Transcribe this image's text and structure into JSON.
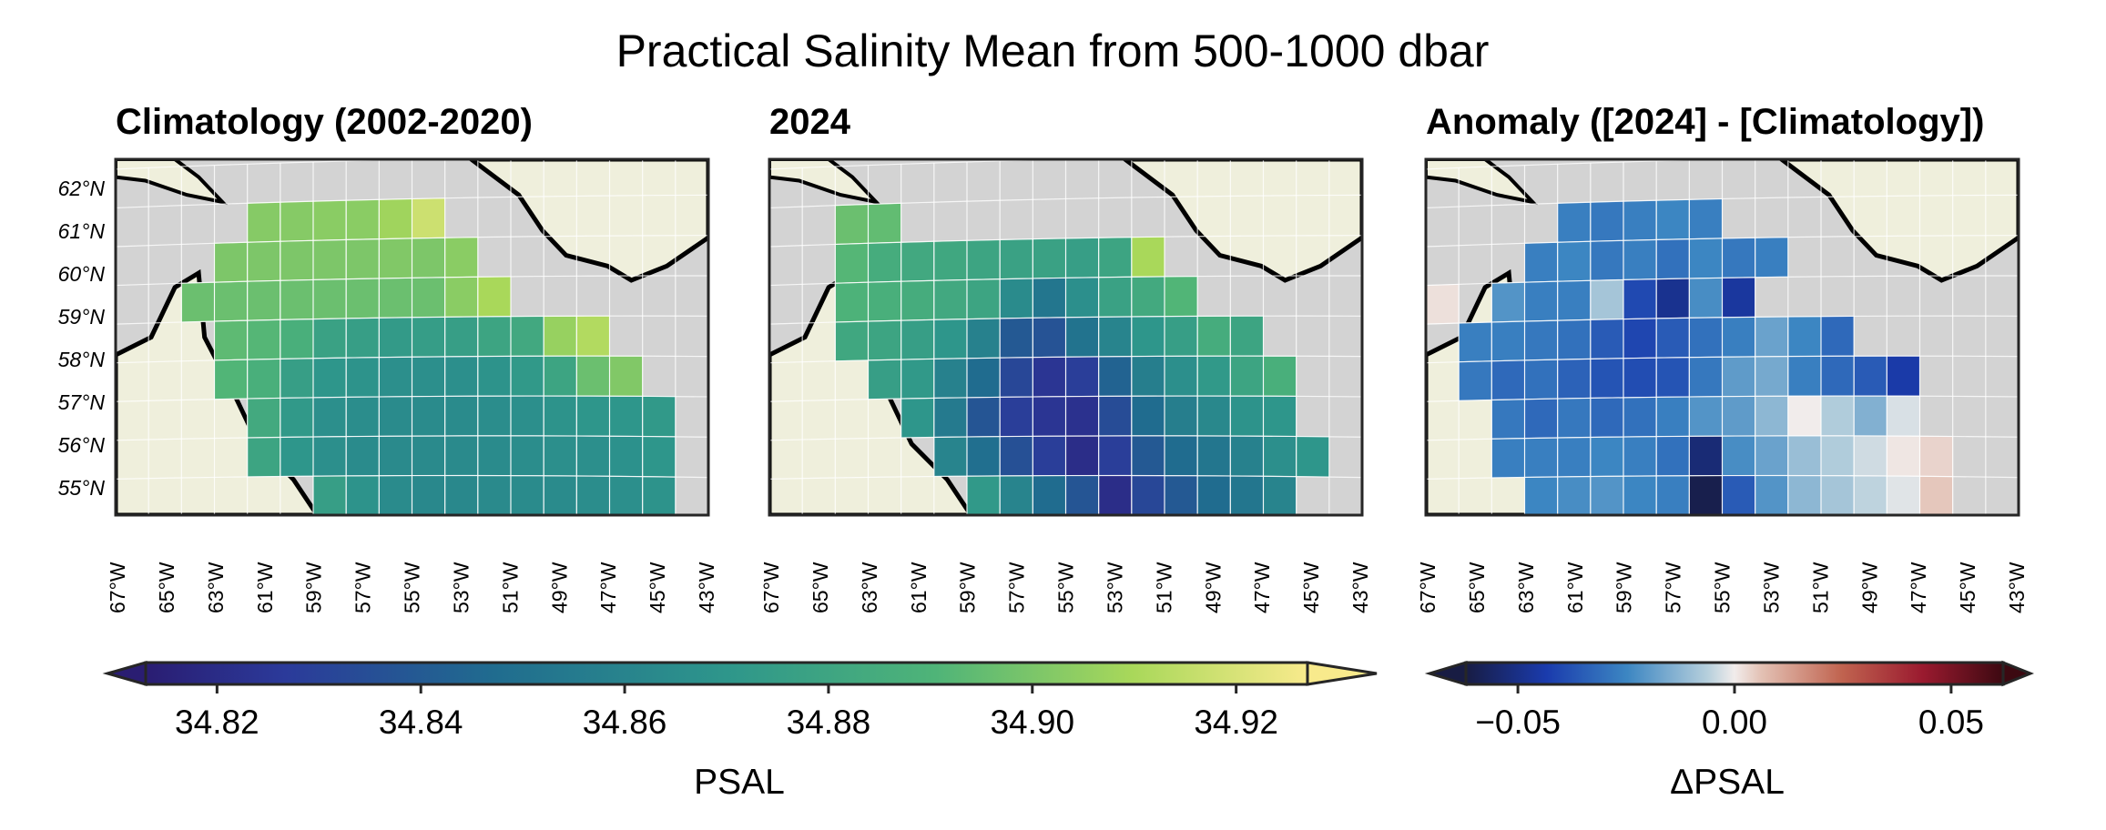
{
  "figure": {
    "title": "Practical Salinity Mean from 500-1000 dbar"
  },
  "panels": [
    {
      "id": "clim",
      "title": "Climatology (2002-2020)",
      "show_lat_labels": true
    },
    {
      "id": "y2024",
      "title": "2024",
      "show_lat_labels": false
    },
    {
      "id": "anom",
      "title": "Anomaly ([2024] - [Climatology])",
      "show_lat_labels": false
    }
  ],
  "lat_labels": [
    "55°N",
    "56°N",
    "57°N",
    "58°N",
    "59°N",
    "60°N",
    "61°N",
    "62°N"
  ],
  "lon_labels": [
    "67°W",
    "65°W",
    "63°W",
    "61°W",
    "59°W",
    "57°W",
    "55°W",
    "53°W",
    "51°W",
    "49°W",
    "47°W",
    "45°W",
    "43°W"
  ],
  "colorbars": [
    {
      "id": "psal",
      "label": "PSAL",
      "colormap": "summer-like viridis (dark blue → teal → green → yellow)",
      "ticks": [
        "34.82",
        "34.84",
        "34.86",
        "34.88",
        "34.90",
        "34.92"
      ],
      "extend": "both"
    },
    {
      "id": "dpsal",
      "label": "ΔPSAL",
      "colormap": "balance (navy → blue → white → red → dark red)",
      "ticks": [
        "−0.05",
        "0.00",
        "0.05"
      ],
      "extend": "both"
    }
  ],
  "colors": {
    "land": "#efefdc",
    "ocean": "#d3d3d3",
    "coast": "#000000",
    "gridline": "#ffffff",
    "frame": "#262626"
  },
  "map_data": {
    "grid_columns": 18,
    "grid_rows": 9,
    "note": "cell rows listed from north (row 0) to south (row 8); null = no data",
    "climatology_psal": [
      [
        null,
        null,
        null,
        null,
        null,
        null,
        null,
        null,
        null,
        null,
        null,
        null,
        null,
        null,
        null,
        null,
        null,
        null
      ],
      [
        null,
        null,
        null,
        null,
        34.904,
        34.904,
        34.905,
        34.905,
        34.91,
        34.92,
        null,
        null,
        null,
        null,
        null,
        null,
        null,
        null
      ],
      [
        null,
        null,
        null,
        34.902,
        34.902,
        34.902,
        34.902,
        34.902,
        34.903,
        34.902,
        34.905,
        null,
        null,
        null,
        null,
        null,
        null,
        null
      ],
      [
        null,
        null,
        34.898,
        34.898,
        34.898,
        34.898,
        34.898,
        34.898,
        34.898,
        34.898,
        34.905,
        34.912,
        null,
        null,
        null,
        null,
        null,
        null
      ],
      [
        null,
        null,
        null,
        34.895,
        34.893,
        34.888,
        34.878,
        34.876,
        34.873,
        34.875,
        34.876,
        34.88,
        34.883,
        34.908,
        34.914,
        null,
        null,
        null
      ],
      [
        null,
        null,
        null,
        34.892,
        34.888,
        34.876,
        34.87,
        34.868,
        34.866,
        34.866,
        34.866,
        34.868,
        34.872,
        34.88,
        34.898,
        34.903,
        null,
        null
      ],
      [
        null,
        null,
        null,
        null,
        34.884,
        34.872,
        34.866,
        34.865,
        34.864,
        34.864,
        34.864,
        34.865,
        34.866,
        34.868,
        34.87,
        34.87,
        34.872,
        null
      ],
      [
        null,
        null,
        null,
        null,
        34.88,
        34.87,
        34.866,
        34.864,
        34.863,
        34.863,
        34.863,
        34.864,
        34.865,
        34.866,
        34.866,
        34.867,
        34.87,
        null
      ],
      [
        null,
        null,
        null,
        null,
        null,
        null,
        34.876,
        34.868,
        34.864,
        34.862,
        34.862,
        34.863,
        34.864,
        34.864,
        34.865,
        34.866,
        34.868,
        null
      ]
    ],
    "y2024_psal": [
      [
        null,
        null,
        null,
        null,
        null,
        null,
        null,
        null,
        null,
        null,
        null,
        null,
        null,
        null,
        null,
        null,
        null,
        null
      ],
      [
        null,
        null,
        34.898,
        34.896,
        null,
        null,
        null,
        null,
        null,
        null,
        null,
        null,
        null,
        null,
        null,
        null,
        null,
        null
      ],
      [
        null,
        null,
        34.893,
        34.886,
        34.883,
        34.882,
        34.88,
        34.878,
        34.878,
        34.876,
        34.88,
        34.912,
        null,
        null,
        null,
        null,
        null,
        null
      ],
      [
        null,
        null,
        34.89,
        34.888,
        34.886,
        34.883,
        34.88,
        34.864,
        34.852,
        34.866,
        34.878,
        34.884,
        34.892,
        null,
        null,
        null,
        null,
        null
      ],
      [
        null,
        null,
        34.882,
        34.88,
        34.876,
        34.87,
        34.858,
        34.838,
        34.835,
        34.85,
        34.86,
        34.87,
        34.876,
        34.886,
        34.88,
        null,
        null,
        null
      ],
      [
        null,
        null,
        null,
        34.876,
        34.872,
        34.858,
        34.846,
        34.83,
        34.822,
        34.826,
        34.842,
        34.856,
        34.866,
        34.872,
        34.88,
        34.888,
        null,
        null
      ],
      [
        null,
        null,
        null,
        null,
        34.87,
        34.854,
        34.836,
        34.826,
        34.822,
        34.82,
        34.832,
        34.846,
        34.856,
        34.862,
        34.868,
        34.87,
        null,
        null
      ],
      [
        null,
        null,
        null,
        null,
        null,
        34.86,
        34.848,
        34.834,
        34.826,
        34.818,
        34.826,
        34.838,
        34.846,
        34.852,
        34.858,
        34.866,
        34.87,
        null
      ],
      [
        null,
        null,
        null,
        null,
        null,
        null,
        34.872,
        34.86,
        34.846,
        34.836,
        34.818,
        34.83,
        34.838,
        34.846,
        34.852,
        34.86,
        null,
        null
      ]
    ],
    "anomaly_dpsal": [
      [
        null,
        null,
        null,
        null,
        null,
        null,
        null,
        null,
        null,
        null,
        null,
        null,
        null,
        null,
        null,
        null,
        null,
        null
      ],
      [
        null,
        null,
        null,
        null,
        -0.03,
        -0.032,
        -0.03,
        -0.028,
        -0.03,
        null,
        null,
        null,
        null,
        null,
        null,
        null,
        null,
        null
      ],
      [
        null,
        null,
        null,
        -0.03,
        -0.028,
        -0.032,
        -0.03,
        -0.034,
        -0.028,
        -0.032,
        -0.03,
        null,
        null,
        null,
        null,
        null,
        null,
        null
      ],
      [
        0.002,
        null,
        -0.024,
        -0.03,
        -0.03,
        -0.01,
        -0.045,
        -0.055,
        -0.026,
        -0.052,
        null,
        null,
        null,
        null,
        null,
        null,
        null,
        null
      ],
      [
        null,
        -0.03,
        -0.03,
        -0.032,
        -0.034,
        -0.04,
        -0.046,
        -0.04,
        -0.034,
        -0.03,
        -0.02,
        -0.028,
        -0.036,
        null,
        null,
        null,
        null,
        null
      ],
      [
        null,
        -0.032,
        -0.036,
        -0.034,
        -0.038,
        -0.042,
        -0.044,
        -0.042,
        -0.032,
        -0.022,
        -0.018,
        -0.03,
        -0.036,
        -0.04,
        -0.05,
        null,
        null,
        null
      ],
      [
        null,
        null,
        -0.032,
        -0.036,
        -0.032,
        -0.036,
        -0.034,
        -0.03,
        -0.024,
        -0.022,
        -0.014,
        0.0,
        -0.008,
        -0.016,
        -0.003,
        null,
        null,
        null
      ],
      [
        null,
        null,
        -0.03,
        -0.03,
        -0.03,
        -0.028,
        -0.03,
        -0.034,
        -0.06,
        -0.026,
        -0.02,
        -0.012,
        -0.008,
        -0.004,
        0.001,
        0.004,
        null,
        null
      ],
      [
        null,
        null,
        null,
        -0.028,
        -0.026,
        -0.024,
        -0.028,
        -0.03,
        -0.068,
        -0.04,
        -0.024,
        -0.014,
        -0.01,
        -0.006,
        -0.002,
        0.006,
        null,
        null
      ]
    ]
  }
}
